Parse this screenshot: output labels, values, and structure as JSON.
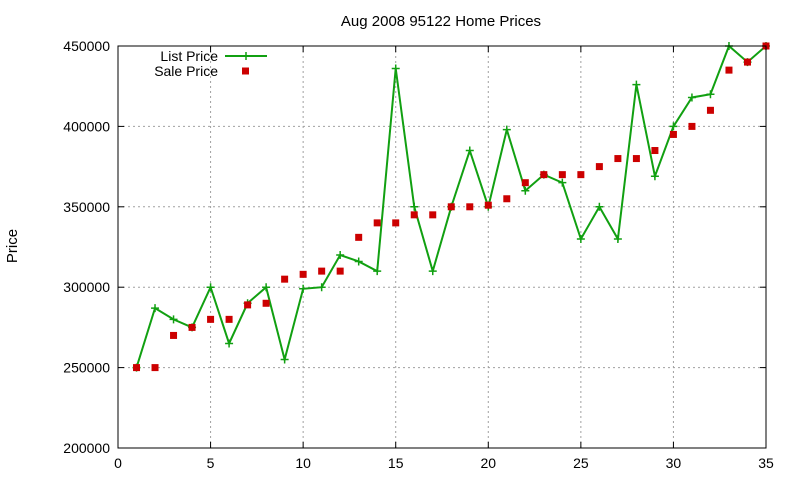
{
  "chart_data": {
    "type": "line",
    "title": "Aug 2008 95122 Home Prices",
    "xlabel": "",
    "ylabel": "Price",
    "xlim": [
      0,
      35
    ],
    "ylim": [
      200000,
      450000
    ],
    "x_ticks": [
      0,
      5,
      10,
      15,
      20,
      25,
      30,
      35
    ],
    "y_ticks": [
      200000,
      250000,
      300000,
      350000,
      400000,
      450000
    ],
    "grid": true,
    "legend_position": "top-left",
    "x": [
      1,
      2,
      3,
      4,
      5,
      6,
      7,
      8,
      9,
      10,
      11,
      12,
      13,
      14,
      15,
      16,
      17,
      18,
      19,
      20,
      21,
      22,
      23,
      24,
      25,
      26,
      27,
      28,
      29,
      30,
      31,
      32,
      33,
      34,
      35
    ],
    "series": [
      {
        "name": "List Price",
        "style": "line-with-plus-markers",
        "color": "#11a011",
        "values": [
          250000,
          287000,
          280000,
          275000,
          300000,
          265000,
          290000,
          300000,
          255000,
          299000,
          300000,
          320000,
          316000,
          310000,
          436000,
          350000,
          310000,
          350000,
          385000,
          350000,
          398000,
          360000,
          370000,
          365000,
          330000,
          350000,
          330000,
          426000,
          369000,
          400000,
          418000,
          420000,
          450000,
          440000,
          450000
        ]
      },
      {
        "name": "Sale Price",
        "style": "square-markers",
        "color": "#cc0000",
        "values": [
          250000,
          250000,
          270000,
          275000,
          280000,
          280000,
          289000,
          290000,
          305000,
          308000,
          310000,
          310000,
          331000,
          340000,
          340000,
          345000,
          345000,
          350000,
          350000,
          351000,
          355000,
          365000,
          370000,
          370000,
          370000,
          375000,
          380000,
          380000,
          385000,
          395000,
          400000,
          410000,
          435000,
          440000,
          450000
        ]
      }
    ]
  }
}
